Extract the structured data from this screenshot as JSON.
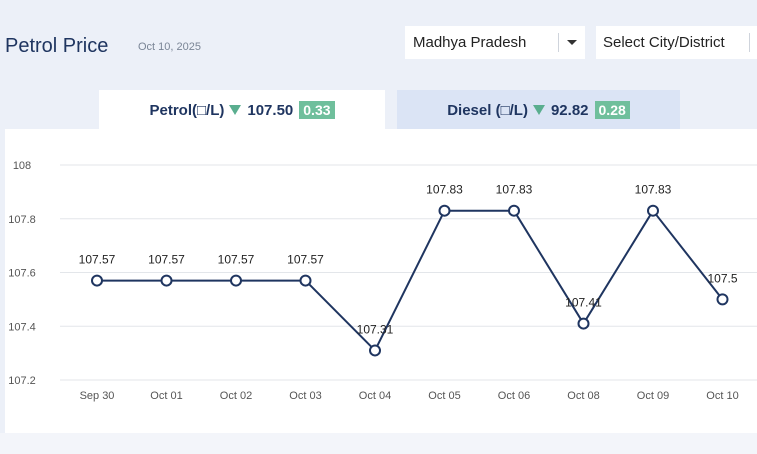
{
  "header": {
    "title": "Petrol Price",
    "date": "Oct 10, 2025"
  },
  "filters": {
    "state": "Madhya Pradesh",
    "city_placeholder": "Select City/District",
    "dropdown_icon": "chevron-down-icon"
  },
  "tabs": [
    {
      "label": "Petrol(□/L)",
      "price": "107.50",
      "change": "0.33",
      "trend": "down",
      "active": true
    },
    {
      "label": "Diesel (□/L)",
      "price": "92.82",
      "change": "0.28",
      "trend": "down",
      "active": false
    }
  ],
  "colors": {
    "line": "#1f3560",
    "down_arrow": "#5aae8f",
    "badge": "#6fbf9c",
    "grid": "#e3e6ea"
  },
  "chart_data": {
    "type": "line",
    "categories": [
      "Sep 30",
      "Oct 01",
      "Oct 02",
      "Oct 03",
      "Oct 04",
      "Oct 05",
      "Oct 06",
      "Oct 08",
      "Oct 09",
      "Oct 10"
    ],
    "values": [
      107.57,
      107.57,
      107.57,
      107.57,
      107.31,
      107.83,
      107.83,
      107.41,
      107.83,
      107.5
    ],
    "data_labels": [
      "107.57",
      "107.57",
      "107.57",
      "107.57",
      "107.31",
      "107.83",
      "107.83",
      "107.41",
      "107.83",
      "107.5"
    ],
    "yticks": [
      "108",
      "107.8",
      "107.6",
      "107.4",
      "107.2"
    ],
    "ytick_values": [
      108,
      107.8,
      107.6,
      107.4,
      107.2
    ],
    "ylim": [
      107.2,
      108
    ],
    "grid": true,
    "legend": "none"
  }
}
